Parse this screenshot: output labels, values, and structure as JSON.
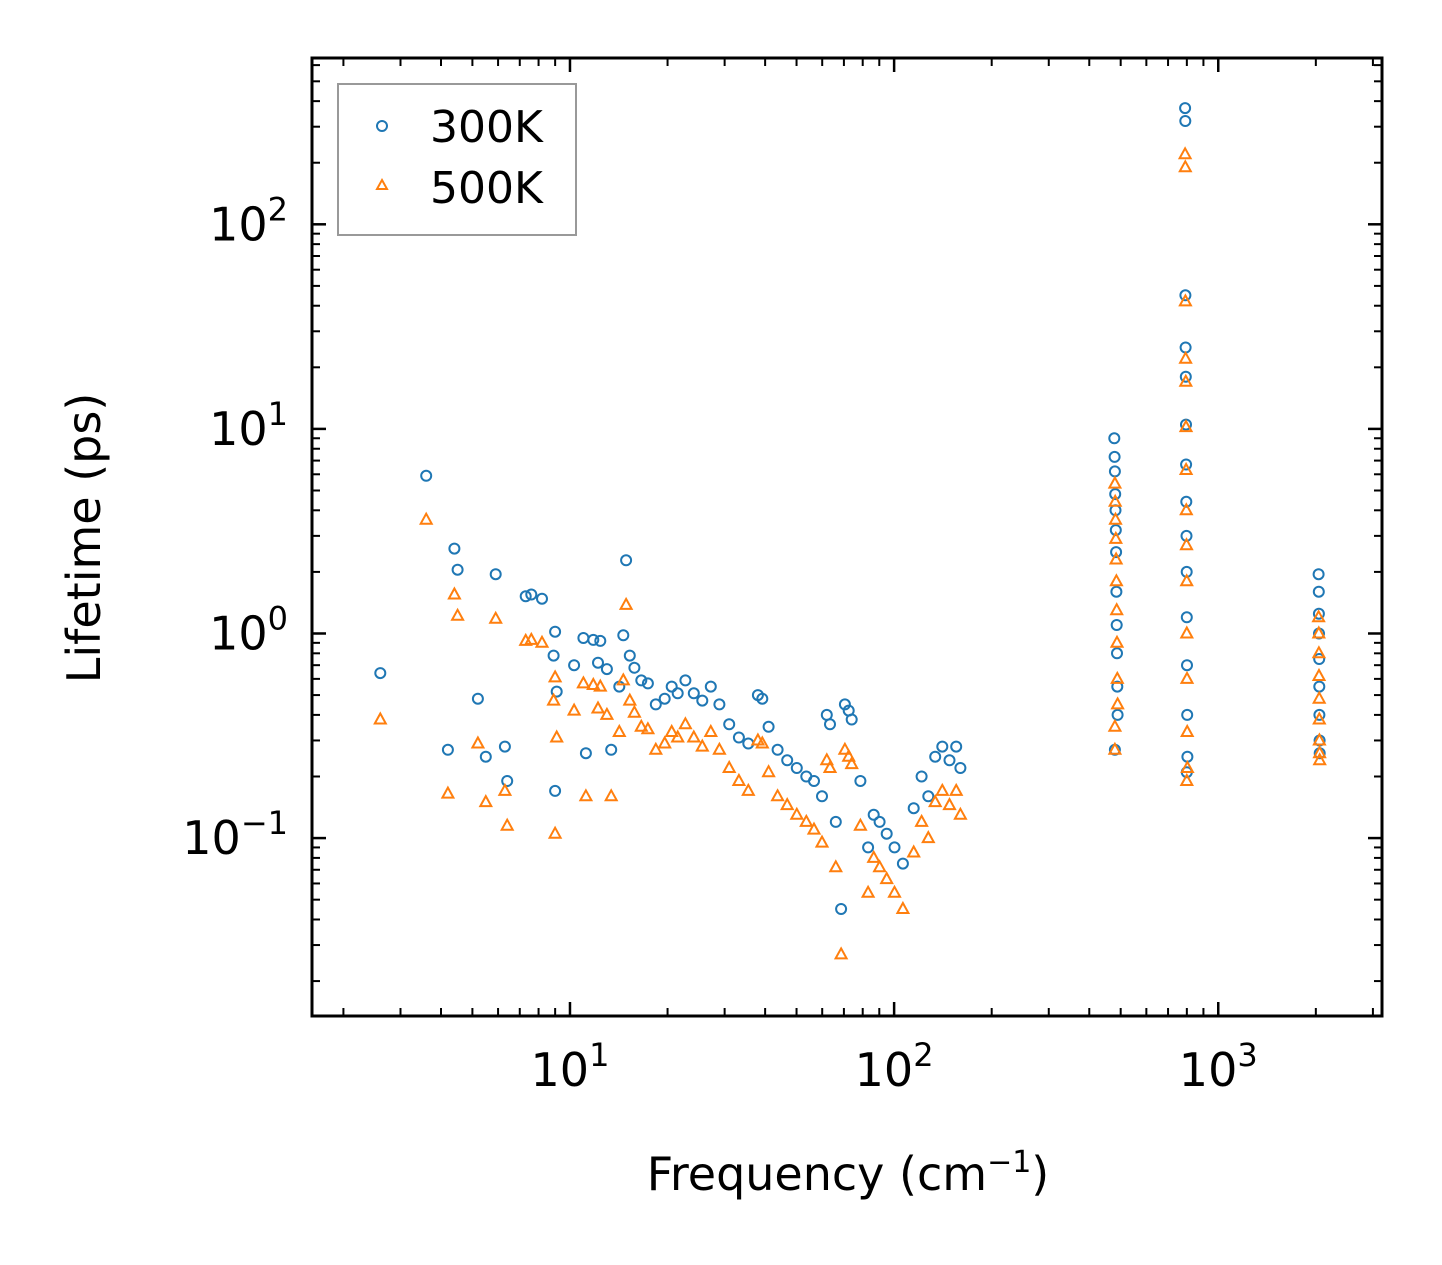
{
  "chart_data": {
    "type": "scatter",
    "title": "",
    "xlabel": "Frequency (cm",
    "xlabel_sup": "−1",
    "xlabel_end": ")",
    "ylabel": "Lifetime (ps)",
    "xscale": "log",
    "yscale": "log",
    "xlim": [
      1.6,
      3200
    ],
    "ylim": [
      0.0135,
      650
    ],
    "x_ticks": [
      {
        "value": 10,
        "base": "10",
        "exp": "1"
      },
      {
        "value": 100,
        "base": "10",
        "exp": "2"
      },
      {
        "value": 1000,
        "base": "10",
        "exp": "3"
      }
    ],
    "y_ticks": [
      {
        "value": 0.1,
        "base": "10",
        "exp": "−1"
      },
      {
        "value": 1,
        "base": "10",
        "exp": "0"
      },
      {
        "value": 10,
        "base": "10",
        "exp": "1"
      },
      {
        "value": 100,
        "base": "10",
        "exp": "2"
      }
    ],
    "legend": {
      "position": "top-left"
    },
    "series": [
      {
        "name": "300K",
        "marker": "circle",
        "color": "#1f77b4",
        "points": [
          [
            2.6,
            0.64
          ],
          [
            3.6,
            5.9
          ],
          [
            4.2,
            0.27
          ],
          [
            4.4,
            2.6
          ],
          [
            4.5,
            2.05
          ],
          [
            5.2,
            0.48
          ],
          [
            5.5,
            0.25
          ],
          [
            5.9,
            1.95
          ],
          [
            6.3,
            0.28
          ],
          [
            6.4,
            0.19
          ],
          [
            7.3,
            1.52
          ],
          [
            7.6,
            1.55
          ],
          [
            8.2,
            1.48
          ],
          [
            8.9,
            0.78
          ],
          [
            9.0,
            1.02
          ],
          [
            9.1,
            0.52
          ],
          [
            9.0,
            0.17
          ],
          [
            10.3,
            0.7
          ],
          [
            11.0,
            0.95
          ],
          [
            11.2,
            0.26
          ],
          [
            11.8,
            0.93
          ],
          [
            12.2,
            0.72
          ],
          [
            12.4,
            0.92
          ],
          [
            13.0,
            0.67
          ],
          [
            13.4,
            0.27
          ],
          [
            14.2,
            0.55
          ],
          [
            14.6,
            0.98
          ],
          [
            14.9,
            2.28
          ],
          [
            15.3,
            0.78
          ],
          [
            15.8,
            0.68
          ],
          [
            16.6,
            0.59
          ],
          [
            17.4,
            0.57
          ],
          [
            18.4,
            0.45
          ],
          [
            19.6,
            0.48
          ],
          [
            20.6,
            0.55
          ],
          [
            21.5,
            0.51
          ],
          [
            22.7,
            0.59
          ],
          [
            24.1,
            0.51
          ],
          [
            25.6,
            0.47
          ],
          [
            27.2,
            0.55
          ],
          [
            28.9,
            0.45
          ],
          [
            31.0,
            0.36
          ],
          [
            33.2,
            0.31
          ],
          [
            35.5,
            0.29
          ],
          [
            38.0,
            0.5
          ],
          [
            39.2,
            0.48
          ],
          [
            41.0,
            0.35
          ],
          [
            43.7,
            0.27
          ],
          [
            46.8,
            0.24
          ],
          [
            50.1,
            0.22
          ],
          [
            53.6,
            0.2
          ],
          [
            56.6,
            0.19
          ],
          [
            59.9,
            0.16
          ],
          [
            62.0,
            0.4
          ],
          [
            63.4,
            0.36
          ],
          [
            66.1,
            0.12
          ],
          [
            68.6,
            0.045
          ],
          [
            70.5,
            0.45
          ],
          [
            72.4,
            0.42
          ],
          [
            74.0,
            0.38
          ],
          [
            78.7,
            0.19
          ],
          [
            83.1,
            0.09
          ],
          [
            86.5,
            0.13
          ],
          [
            90.2,
            0.12
          ],
          [
            94.9,
            0.105
          ],
          [
            100.3,
            0.09
          ],
          [
            106.4,
            0.075
          ],
          [
            114.9,
            0.14
          ],
          [
            121.6,
            0.2
          ],
          [
            127.5,
            0.16
          ],
          [
            133.9,
            0.25
          ],
          [
            140.8,
            0.28
          ],
          [
            148.2,
            0.24
          ],
          [
            155.4,
            0.28
          ],
          [
            160.1,
            0.22
          ],
          [
            478,
            9.0
          ],
          [
            479,
            7.3
          ],
          [
            480,
            6.2
          ],
          [
            481,
            4.8
          ],
          [
            482,
            4.0
          ],
          [
            483,
            3.2
          ],
          [
            484,
            2.5
          ],
          [
            485,
            1.6
          ],
          [
            486,
            1.1
          ],
          [
            487,
            0.8
          ],
          [
            488,
            0.55
          ],
          [
            489,
            0.4
          ],
          [
            480,
            0.27
          ],
          [
            790,
            370
          ],
          [
            791,
            320
          ],
          [
            792,
            45
          ],
          [
            793,
            25
          ],
          [
            794,
            18
          ],
          [
            795,
            10.5
          ],
          [
            796,
            6.7
          ],
          [
            797,
            4.4
          ],
          [
            798,
            3.0
          ],
          [
            799,
            2.0
          ],
          [
            800,
            1.2
          ],
          [
            801,
            0.7
          ],
          [
            802,
            0.4
          ],
          [
            803,
            0.25
          ],
          [
            800,
            0.21
          ],
          [
            2040,
            1.95
          ],
          [
            2042,
            1.6
          ],
          [
            2044,
            1.25
          ],
          [
            2046,
            1.0
          ],
          [
            2048,
            0.75
          ],
          [
            2050,
            0.55
          ],
          [
            2052,
            0.4
          ],
          [
            2054,
            0.3
          ],
          [
            2056,
            0.26
          ]
        ]
      },
      {
        "name": "500K",
        "marker": "triangle",
        "color": "#ff7f0e",
        "points": [
          [
            2.6,
            0.38
          ],
          [
            3.6,
            3.6
          ],
          [
            4.2,
            0.165
          ],
          [
            4.4,
            1.55
          ],
          [
            4.5,
            1.22
          ],
          [
            5.2,
            0.29
          ],
          [
            5.5,
            0.15
          ],
          [
            5.9,
            1.18
          ],
          [
            6.3,
            0.17
          ],
          [
            6.4,
            0.115
          ],
          [
            7.3,
            0.92
          ],
          [
            7.6,
            0.93
          ],
          [
            8.2,
            0.9
          ],
          [
            8.9,
            0.47
          ],
          [
            9.0,
            0.61
          ],
          [
            9.1,
            0.31
          ],
          [
            9.0,
            0.105
          ],
          [
            10.3,
            0.42
          ],
          [
            11.0,
            0.57
          ],
          [
            11.2,
            0.16
          ],
          [
            11.8,
            0.56
          ],
          [
            12.2,
            0.43
          ],
          [
            12.4,
            0.55
          ],
          [
            13.0,
            0.4
          ],
          [
            13.4,
            0.16
          ],
          [
            14.2,
            0.33
          ],
          [
            14.6,
            0.59
          ],
          [
            14.9,
            1.38
          ],
          [
            15.3,
            0.47
          ],
          [
            15.8,
            0.41
          ],
          [
            16.6,
            0.35
          ],
          [
            17.4,
            0.34
          ],
          [
            18.4,
            0.27
          ],
          [
            19.6,
            0.29
          ],
          [
            20.6,
            0.33
          ],
          [
            21.5,
            0.31
          ],
          [
            22.7,
            0.36
          ],
          [
            24.1,
            0.31
          ],
          [
            25.6,
            0.28
          ],
          [
            27.2,
            0.33
          ],
          [
            28.9,
            0.27
          ],
          [
            31.0,
            0.22
          ],
          [
            33.2,
            0.19
          ],
          [
            35.5,
            0.17
          ],
          [
            38.0,
            0.3
          ],
          [
            39.2,
            0.29
          ],
          [
            41.0,
            0.21
          ],
          [
            43.7,
            0.16
          ],
          [
            46.8,
            0.145
          ],
          [
            50.1,
            0.13
          ],
          [
            53.6,
            0.12
          ],
          [
            56.6,
            0.11
          ],
          [
            59.9,
            0.095
          ],
          [
            62.0,
            0.24
          ],
          [
            63.4,
            0.22
          ],
          [
            66.1,
            0.072
          ],
          [
            68.6,
            0.027
          ],
          [
            70.5,
            0.27
          ],
          [
            72.4,
            0.25
          ],
          [
            74.0,
            0.23
          ],
          [
            78.7,
            0.115
          ],
          [
            83.1,
            0.054
          ],
          [
            86.5,
            0.08
          ],
          [
            90.2,
            0.072
          ],
          [
            94.9,
            0.063
          ],
          [
            100.3,
            0.054
          ],
          [
            106.4,
            0.045
          ],
          [
            114.9,
            0.085
          ],
          [
            121.6,
            0.12
          ],
          [
            127.5,
            0.1
          ],
          [
            133.9,
            0.15
          ],
          [
            140.8,
            0.17
          ],
          [
            148.2,
            0.145
          ],
          [
            155.4,
            0.17
          ],
          [
            160.1,
            0.13
          ],
          [
            480,
            5.4
          ],
          [
            481,
            4.4
          ],
          [
            482,
            3.6
          ],
          [
            483,
            2.9
          ],
          [
            484,
            2.3
          ],
          [
            485,
            1.8
          ],
          [
            486,
            1.3
          ],
          [
            487,
            0.9
          ],
          [
            488,
            0.6
          ],
          [
            489,
            0.45
          ],
          [
            480,
            0.35
          ],
          [
            480,
            0.27
          ],
          [
            790,
            220
          ],
          [
            791,
            190
          ],
          [
            792,
            42
          ],
          [
            793,
            22
          ],
          [
            794,
            17
          ],
          [
            795,
            10.2
          ],
          [
            796,
            6.3
          ],
          [
            797,
            4.0
          ],
          [
            798,
            2.7
          ],
          [
            799,
            1.8
          ],
          [
            800,
            1.0
          ],
          [
            801,
            0.6
          ],
          [
            802,
            0.33
          ],
          [
            803,
            0.22
          ],
          [
            800,
            0.19
          ],
          [
            2040,
            1.2
          ],
          [
            2042,
            1.0
          ],
          [
            2044,
            0.8
          ],
          [
            2046,
            0.62
          ],
          [
            2048,
            0.48
          ],
          [
            2050,
            0.38
          ],
          [
            2052,
            0.3
          ],
          [
            2054,
            0.26
          ],
          [
            2056,
            0.24
          ]
        ]
      }
    ]
  }
}
